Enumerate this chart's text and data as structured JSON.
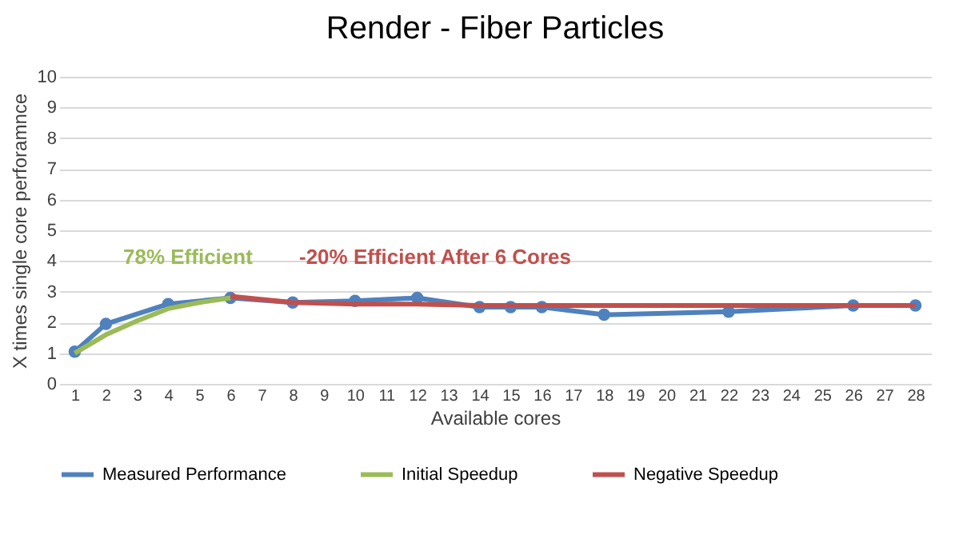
{
  "chart_data": {
    "type": "line",
    "title": "Render - Fiber Particles",
    "xlabel": "Available cores",
    "ylabel": "X times single core perforamnce",
    "xlim": [
      0.5,
      28.5
    ],
    "xticks": [
      1,
      2,
      3,
      4,
      5,
      6,
      7,
      8,
      9,
      10,
      11,
      12,
      13,
      14,
      15,
      16,
      17,
      18,
      19,
      20,
      21,
      22,
      23,
      24,
      25,
      26,
      27,
      28
    ],
    "ylim": [
      0,
      10
    ],
    "yticks": [
      0,
      1,
      2,
      3,
      4,
      5,
      6,
      7,
      8,
      9,
      10
    ],
    "grid": "y",
    "legend": "bottom",
    "annotations": [
      "78% Efficient",
      "-20% Efficient After 6 Cores"
    ],
    "series": [
      {
        "name": "Measured Performance",
        "color": "#4f81bd",
        "marker": "circle",
        "x": [
          1,
          2,
          4,
          6,
          8,
          10,
          12,
          14,
          15,
          16,
          18,
          22,
          26,
          28
        ],
        "values": [
          1.05,
          1.95,
          2.6,
          2.8,
          2.65,
          2.7,
          2.8,
          2.5,
          2.5,
          2.5,
          2.25,
          2.35,
          2.55,
          2.55
        ]
      },
      {
        "name": "Initial Speedup",
        "color": "#9bbb59",
        "x": [
          1,
          2,
          3,
          4,
          5,
          6
        ],
        "values": [
          1.0,
          1.6,
          2.05,
          2.45,
          2.65,
          2.8
        ]
      },
      {
        "name": "Negative Speedup",
        "color": "#c0504d",
        "x": [
          6,
          8,
          10,
          12,
          14,
          16,
          28
        ],
        "values": [
          2.85,
          2.65,
          2.6,
          2.6,
          2.55,
          2.55,
          2.55
        ]
      }
    ]
  }
}
